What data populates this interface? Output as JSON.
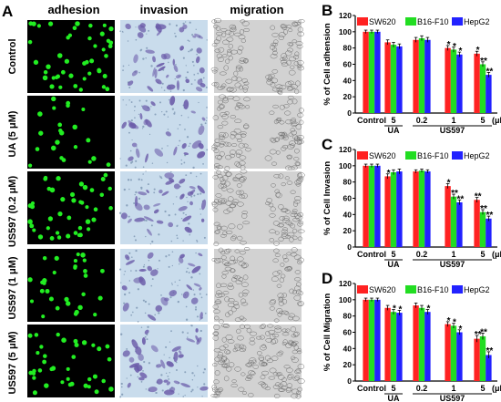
{
  "panel_a": {
    "letter": "A",
    "columns": [
      "adhesion",
      "invasion",
      "migration"
    ],
    "rows": [
      "Control",
      "UA (5 μM)",
      "US597 (0.2 μM)",
      "US597 (1 μM)",
      "US597 (5 μM)"
    ]
  },
  "colors": {
    "SW620": "#ff2222",
    "B16-F10": "#22dd22",
    "HepG2": "#2222ff",
    "adhesion_dot": "#22ee22",
    "invasion_bg": "#c9dcec",
    "invasion_stain": "#6a5aa8",
    "migration_bg": "#d2d2d2"
  },
  "chart_data": [
    {
      "letter": "B",
      "type": "bar",
      "ylabel": "% of Cell adhension",
      "ylim": [
        0,
        120
      ],
      "yticks": [
        0,
        20,
        40,
        60,
        80,
        100,
        120
      ],
      "categories": [
        "Control",
        "5",
        "0.2",
        "1",
        "5"
      ],
      "unit": "(μM)",
      "groups": [
        {
          "label": "UA",
          "from": 1,
          "to": 1
        },
        {
          "label": "US597",
          "from": 2,
          "to": 4
        }
      ],
      "series": [
        {
          "name": "SW620",
          "values": [
            100,
            87,
            90,
            80,
            73
          ],
          "errors": [
            2,
            3,
            3,
            3,
            3
          ],
          "marks": [
            "",
            "",
            "",
            "*",
            "*"
          ]
        },
        {
          "name": "B16-F10",
          "values": [
            100,
            84,
            92,
            78,
            60
          ],
          "errors": [
            2,
            3,
            3,
            3,
            3
          ],
          "marks": [
            "",
            "",
            "",
            "*",
            "**"
          ]
        },
        {
          "name": "HepG2",
          "values": [
            100,
            82,
            90,
            72,
            47
          ],
          "errors": [
            2,
            3,
            3,
            3,
            3
          ],
          "marks": [
            "",
            "",
            "",
            "*",
            "**"
          ]
        }
      ]
    },
    {
      "letter": "C",
      "type": "bar",
      "ylabel": "% of Cell Invasion",
      "ylim": [
        0,
        120
      ],
      "yticks": [
        0,
        20,
        40,
        60,
        80,
        100,
        120
      ],
      "categories": [
        "Control",
        "5",
        "0.2",
        "1",
        "5"
      ],
      "unit": "(μM)",
      "groups": [
        {
          "label": "UA",
          "from": 1,
          "to": 1
        },
        {
          "label": "US597",
          "from": 2,
          "to": 4
        }
      ],
      "series": [
        {
          "name": "SW620",
          "values": [
            100,
            87,
            93,
            75,
            58
          ],
          "errors": [
            2,
            3,
            2,
            3,
            3
          ],
          "marks": [
            "",
            "*",
            "",
            "*",
            "**"
          ]
        },
        {
          "name": "B16-F10",
          "values": [
            100,
            92,
            94,
            62,
            43
          ],
          "errors": [
            2,
            3,
            2,
            3,
            3
          ],
          "marks": [
            "",
            "",
            "",
            "**",
            "**"
          ]
        },
        {
          "name": "HepG2",
          "values": [
            100,
            93,
            93,
            55,
            35
          ],
          "errors": [
            2,
            3,
            2,
            3,
            3
          ],
          "marks": [
            "",
            "",
            "",
            "**",
            "**"
          ]
        }
      ]
    },
    {
      "letter": "D",
      "type": "bar",
      "ylabel": "% of Cell Migration",
      "ylim": [
        0,
        120
      ],
      "yticks": [
        0,
        20,
        40,
        60,
        80,
        100,
        120
      ],
      "categories": [
        "Control",
        "5",
        "0.2",
        "1",
        "5"
      ],
      "unit": "(μM)",
      "groups": [
        {
          "label": "UA",
          "from": 1,
          "to": 1
        },
        {
          "label": "US597",
          "from": 2,
          "to": 4
        }
      ],
      "series": [
        {
          "name": "SW620",
          "values": [
            100,
            90,
            93,
            70,
            52
          ],
          "errors": [
            2,
            3,
            3,
            3,
            4
          ],
          "marks": [
            "",
            "",
            "",
            "*",
            "**"
          ]
        },
        {
          "name": "B16-F10",
          "values": [
            100,
            85,
            90,
            68,
            55
          ],
          "errors": [
            2,
            3,
            3,
            3,
            4
          ],
          "marks": [
            "",
            "*",
            "",
            "*",
            "**"
          ]
        },
        {
          "name": "HepG2",
          "values": [
            100,
            84,
            85,
            60,
            32
          ],
          "errors": [
            2,
            3,
            3,
            3,
            4
          ],
          "marks": [
            "",
            "*",
            "*",
            "*",
            "**"
          ]
        }
      ]
    }
  ]
}
